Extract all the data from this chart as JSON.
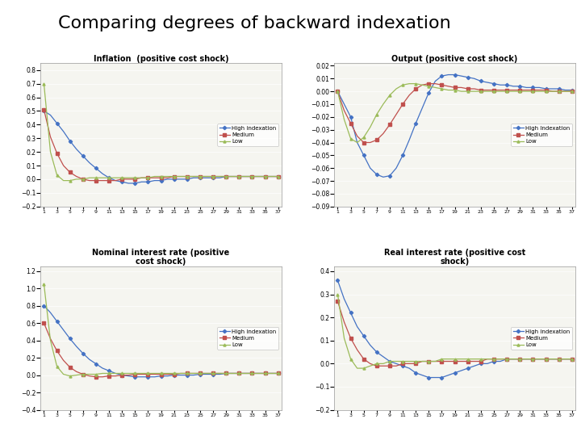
{
  "title": "Comparing degrees of backward indexation",
  "title_fontsize": 16,
  "title_fontweight": "normal",
  "n_periods": 37,
  "colors": {
    "high": "#4472C4",
    "medium": "#C0504D",
    "low": "#9BBB59"
  },
  "subplot_titles": [
    "Inflation  (positive cost shock)",
    "Output (positive cost shock)",
    "Nominal interest rate (positive\ncost shock)",
    "Real interest rate (positive cost\nshock)"
  ],
  "legend_labels_inflation": [
    "High indexation",
    "Medium",
    "Low"
  ],
  "legend_labels_output": [
    "High Indexation",
    "Medium",
    "Low"
  ],
  "legend_labels_nominal": [
    "High indexation",
    "Medium",
    "Low"
  ],
  "legend_labels_real": [
    "High indexation",
    "Medium",
    "Low"
  ],
  "inflation": {
    "high": [
      0.5,
      0.47,
      0.41,
      0.35,
      0.28,
      0.22,
      0.17,
      0.12,
      0.08,
      0.04,
      0.01,
      -0.01,
      -0.02,
      -0.03,
      -0.03,
      -0.02,
      -0.02,
      -0.01,
      -0.01,
      0.0,
      0.0,
      0.0,
      0.0,
      0.01,
      0.01,
      0.01,
      0.01,
      0.01,
      0.02,
      0.02,
      0.02,
      0.02,
      0.02,
      0.02,
      0.02,
      0.02,
      0.02
    ],
    "medium": [
      0.51,
      0.31,
      0.19,
      0.1,
      0.05,
      0.02,
      0.0,
      -0.01,
      -0.01,
      -0.01,
      -0.01,
      -0.01,
      0.0,
      0.0,
      0.0,
      0.01,
      0.01,
      0.01,
      0.01,
      0.01,
      0.02,
      0.02,
      0.02,
      0.02,
      0.02,
      0.02,
      0.02,
      0.02,
      0.02,
      0.02,
      0.02,
      0.02,
      0.02,
      0.02,
      0.02,
      0.02,
      0.02
    ],
    "low": [
      0.7,
      0.2,
      0.03,
      -0.01,
      -0.01,
      0.0,
      0.0,
      0.01,
      0.01,
      0.01,
      0.01,
      0.01,
      0.01,
      0.01,
      0.01,
      0.01,
      0.01,
      0.02,
      0.02,
      0.02,
      0.02,
      0.02,
      0.02,
      0.02,
      0.02,
      0.02,
      0.02,
      0.02,
      0.02,
      0.02,
      0.02,
      0.02,
      0.02,
      0.02,
      0.02,
      0.02,
      0.02
    ],
    "ylim": [
      -0.2,
      0.85
    ],
    "yticks": [
      -0.2,
      -0.1,
      0.0,
      0.1,
      0.2,
      0.3,
      0.4,
      0.5,
      0.6,
      0.7,
      0.8
    ]
  },
  "output": {
    "high": [
      0.0,
      -0.01,
      -0.02,
      -0.04,
      -0.05,
      -0.06,
      -0.065,
      -0.067,
      -0.066,
      -0.06,
      -0.05,
      -0.038,
      -0.025,
      -0.013,
      -0.001,
      0.008,
      0.012,
      0.013,
      0.013,
      0.012,
      0.011,
      0.01,
      0.008,
      0.007,
      0.006,
      0.005,
      0.005,
      0.004,
      0.004,
      0.003,
      0.003,
      0.003,
      0.002,
      0.002,
      0.002,
      0.001,
      0.001
    ],
    "medium": [
      0.0,
      -0.015,
      -0.025,
      -0.035,
      -0.04,
      -0.04,
      -0.038,
      -0.033,
      -0.026,
      -0.018,
      -0.01,
      -0.003,
      0.002,
      0.005,
      0.006,
      0.006,
      0.005,
      0.004,
      0.003,
      0.003,
      0.002,
      0.002,
      0.001,
      0.001,
      0.001,
      0.001,
      0.001,
      0.001,
      0.001,
      0.001,
      0.001,
      0.001,
      0.001,
      0.0,
      0.0,
      0.0,
      0.0
    ],
    "low": [
      0.0,
      -0.022,
      -0.037,
      -0.04,
      -0.036,
      -0.028,
      -0.018,
      -0.01,
      -0.003,
      0.002,
      0.005,
      0.006,
      0.006,
      0.005,
      0.004,
      0.003,
      0.002,
      0.001,
      0.001,
      0.0,
      0.0,
      0.0,
      0.0,
      0.0,
      0.0,
      0.0,
      0.0,
      0.0,
      0.0,
      0.0,
      0.0,
      0.0,
      0.0,
      0.0,
      0.0,
      0.0,
      0.0
    ],
    "ylim": [
      -0.09,
      0.022
    ],
    "yticks": [
      -0.09,
      -0.08,
      -0.07,
      -0.06,
      -0.05,
      -0.04,
      -0.03,
      -0.02,
      -0.01,
      0.0,
      0.01,
      0.02
    ]
  },
  "nominal": {
    "high": [
      0.8,
      0.72,
      0.62,
      0.52,
      0.42,
      0.33,
      0.25,
      0.18,
      0.13,
      0.08,
      0.05,
      0.02,
      0.0,
      -0.01,
      -0.02,
      -0.02,
      -0.02,
      -0.02,
      -0.01,
      -0.01,
      0.0,
      0.0,
      0.0,
      0.0,
      0.01,
      0.01,
      0.01,
      0.01,
      0.02,
      0.02,
      0.02,
      0.02,
      0.02,
      0.02,
      0.02,
      0.02,
      0.02
    ],
    "medium": [
      0.6,
      0.42,
      0.28,
      0.17,
      0.09,
      0.04,
      0.01,
      -0.01,
      -0.02,
      -0.02,
      -0.01,
      -0.01,
      0.0,
      0.0,
      0.01,
      0.01,
      0.01,
      0.01,
      0.01,
      0.01,
      0.01,
      0.02,
      0.02,
      0.02,
      0.02,
      0.02,
      0.02,
      0.02,
      0.02,
      0.02,
      0.02,
      0.02,
      0.02,
      0.02,
      0.02,
      0.02,
      0.02
    ],
    "low": [
      1.05,
      0.4,
      0.1,
      0.01,
      -0.01,
      0.0,
      0.01,
      0.01,
      0.01,
      0.02,
      0.02,
      0.02,
      0.02,
      0.02,
      0.02,
      0.02,
      0.02,
      0.02,
      0.02,
      0.02,
      0.02,
      0.02,
      0.02,
      0.02,
      0.02,
      0.02,
      0.02,
      0.02,
      0.02,
      0.02,
      0.02,
      0.02,
      0.02,
      0.02,
      0.02,
      0.02,
      0.02
    ],
    "ylim": [
      -0.4,
      1.25
    ],
    "yticks": [
      -0.4,
      -0.2,
      0.0,
      0.2,
      0.4,
      0.6,
      0.8,
      1.0,
      1.2
    ]
  },
  "real": {
    "high": [
      0.36,
      0.28,
      0.22,
      0.16,
      0.12,
      0.08,
      0.05,
      0.03,
      0.01,
      0.0,
      -0.01,
      -0.02,
      -0.04,
      -0.05,
      -0.06,
      -0.06,
      -0.06,
      -0.05,
      -0.04,
      -0.03,
      -0.02,
      -0.01,
      0.0,
      0.0,
      0.01,
      0.01,
      0.02,
      0.02,
      0.02,
      0.02,
      0.02,
      0.02,
      0.02,
      0.02,
      0.02,
      0.02,
      0.02
    ],
    "medium": [
      0.27,
      0.18,
      0.11,
      0.06,
      0.02,
      0.0,
      -0.01,
      -0.01,
      -0.01,
      -0.01,
      0.0,
      0.0,
      0.0,
      0.01,
      0.01,
      0.01,
      0.01,
      0.01,
      0.01,
      0.01,
      0.01,
      0.01,
      0.01,
      0.02,
      0.02,
      0.02,
      0.02,
      0.02,
      0.02,
      0.02,
      0.02,
      0.02,
      0.02,
      0.02,
      0.02,
      0.02,
      0.02
    ],
    "low": [
      0.3,
      0.11,
      0.02,
      -0.02,
      -0.02,
      -0.01,
      0.0,
      0.0,
      0.01,
      0.01,
      0.01,
      0.01,
      0.01,
      0.01,
      0.01,
      0.01,
      0.02,
      0.02,
      0.02,
      0.02,
      0.02,
      0.02,
      0.02,
      0.02,
      0.02,
      0.02,
      0.02,
      0.02,
      0.02,
      0.02,
      0.02,
      0.02,
      0.02,
      0.02,
      0.02,
      0.02,
      0.02
    ],
    "ylim": [
      -0.2,
      0.42
    ],
    "yticks": [
      -0.2,
      -0.1,
      0.0,
      0.1,
      0.2,
      0.3,
      0.4
    ]
  },
  "xtick_labels": [
    "1",
    "3",
    "5",
    "7",
    "9",
    "11",
    "13",
    "15",
    "17",
    "19",
    "21",
    "23",
    "25",
    "27",
    "29",
    "31",
    "33",
    "35",
    "37"
  ],
  "xtick_positions": [
    0,
    2,
    4,
    6,
    8,
    10,
    12,
    14,
    16,
    18,
    20,
    22,
    24,
    26,
    28,
    30,
    32,
    34,
    36
  ],
  "plot_bg": "#f5f5f0"
}
